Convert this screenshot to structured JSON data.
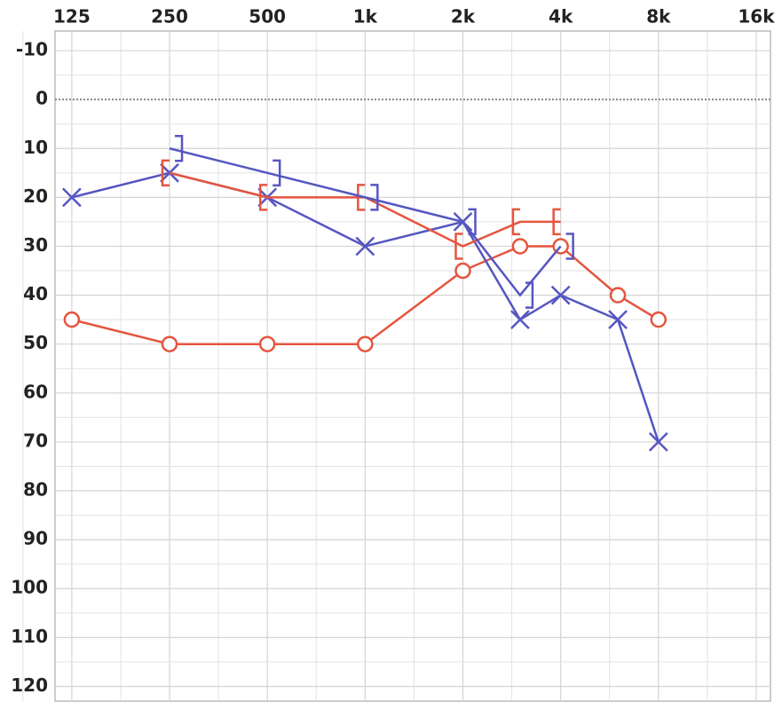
{
  "chart_data": {
    "type": "audiogram",
    "x": [
      125,
      250,
      500,
      1000,
      2000,
      3000,
      4000,
      6000,
      8000
    ],
    "xlim": [
      111,
      17700
    ],
    "xticks": [
      125,
      250,
      500,
      {
        "value": 1000,
        "label": "1k"
      },
      {
        "value": 2000,
        "label": "2k"
      },
      {
        "value": 4000,
        "label": "4k"
      },
      {
        "value": 8000,
        "label": "8k"
      },
      {
        "value": 16000,
        "label": "16k"
      }
    ],
    "xscale": "log",
    "ylim": [
      -14,
      123
    ],
    "yticks": [
      -10,
      0,
      10,
      20,
      30,
      40,
      50,
      60,
      70,
      80,
      90,
      100,
      110,
      120
    ],
    "y_inverted": true,
    "dotted_line_at": 0,
    "grid": true,
    "series": [
      {
        "marker": "circle",
        "color": "#e5553f",
        "values": [
          45,
          50,
          50,
          50,
          35,
          30,
          30,
          40,
          45
        ]
      },
      {
        "marker": "x",
        "color": "#5656c2",
        "values": [
          20,
          15,
          20,
          30,
          25,
          45,
          40,
          45,
          70
        ]
      },
      {
        "marker": "left-bracket",
        "color": "#e5553f",
        "values": [
          null,
          15,
          20,
          20,
          30,
          25,
          25,
          null,
          null
        ]
      },
      {
        "marker": "right-bracket",
        "color": "#5656c2",
        "values": [
          null,
          10,
          15,
          20,
          25,
          40,
          30,
          null,
          null
        ]
      }
    ]
  }
}
